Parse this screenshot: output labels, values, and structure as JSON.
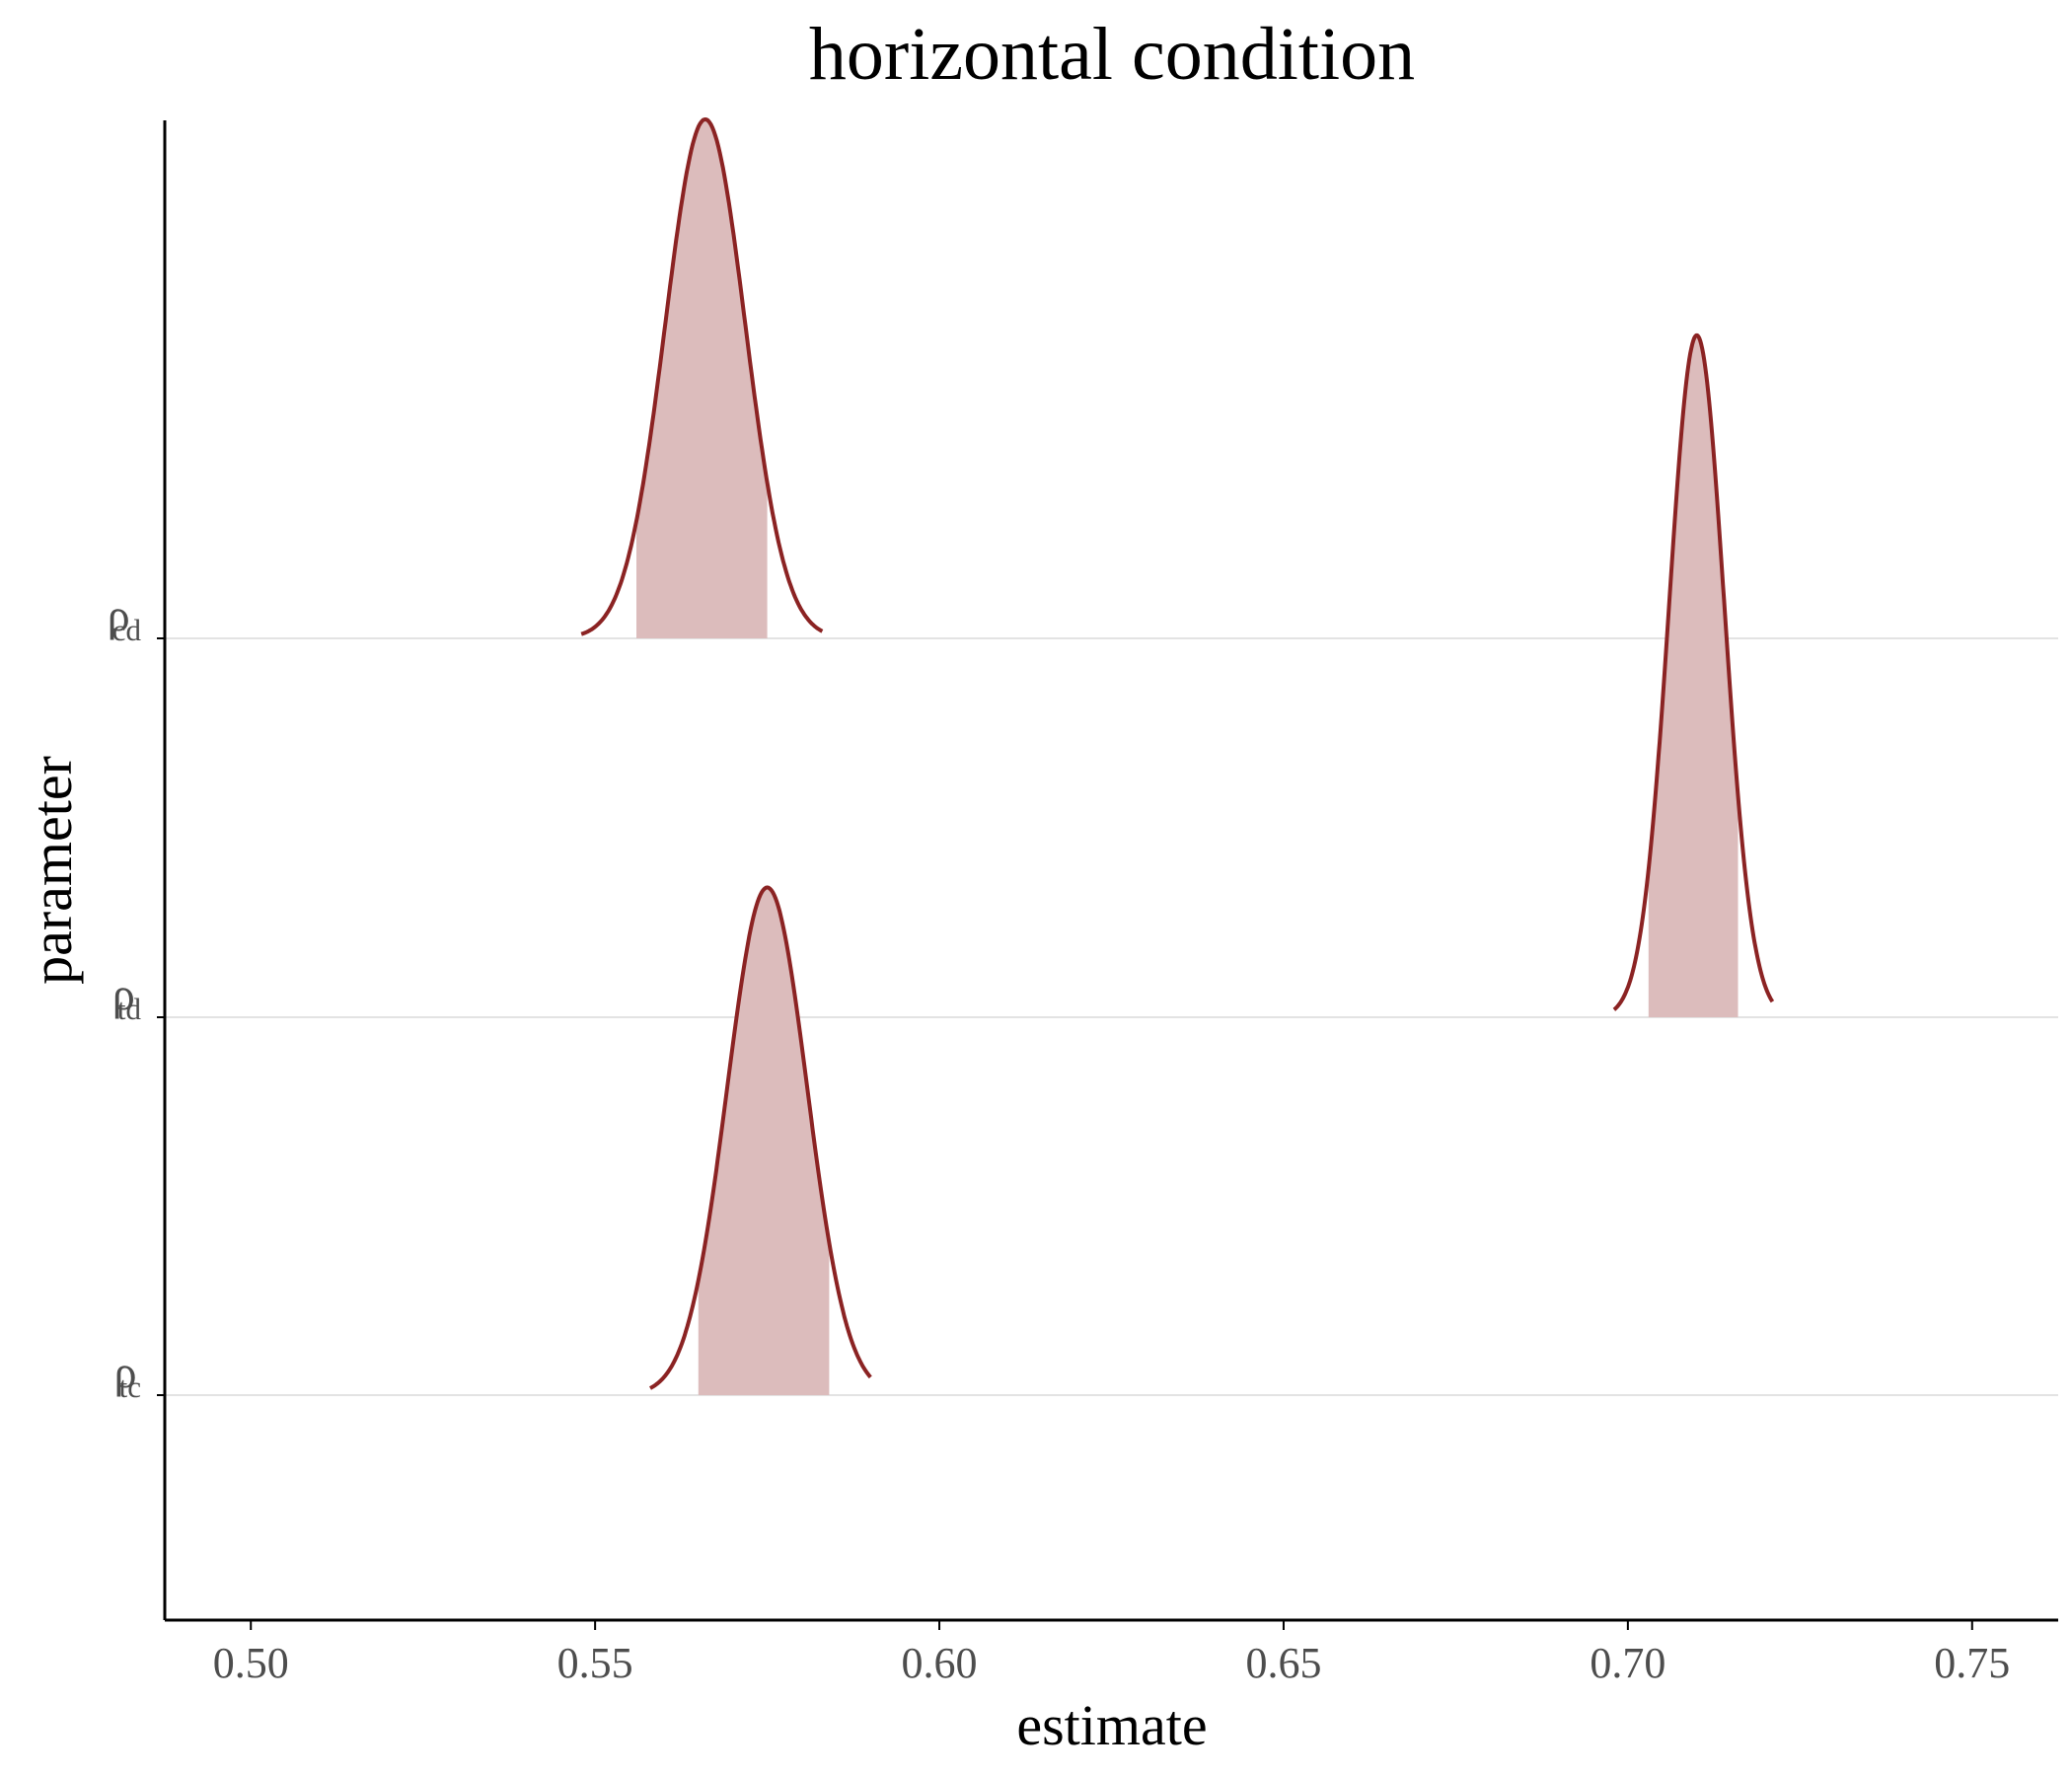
{
  "chart_data": {
    "type": "area",
    "title": "horizontal condition",
    "xlabel": "estimate",
    "ylabel": "parameter",
    "xlim": [
      0.4875,
      0.7625
    ],
    "xticks": [
      "0.50",
      "0.55",
      "0.60",
      "0.65",
      "0.70",
      "0.75"
    ],
    "xtick_values": [
      0.5,
      0.55,
      0.6,
      0.65,
      0.7,
      0.75
    ],
    "grid": "horizontal lines at categories",
    "colors": {
      "line": "#8b2323",
      "fill": "#dcbcbc",
      "grid": "#e3e3e3",
      "axis": "#000000"
    },
    "categories": [
      {
        "symbol": "ρ",
        "subscript": "cd"
      },
      {
        "symbol": "ρ",
        "subscript": "td"
      },
      {
        "symbol": "ρ",
        "subscript": "tc"
      }
    ],
    "series": [
      {
        "category_index": 0,
        "mean": 0.566,
        "sd": 0.0058,
        "x_range": [
          0.548,
          0.583
        ],
        "interval": [
          0.556,
          0.575
        ],
        "relative_height": 1.37
      },
      {
        "category_index": 1,
        "mean": 0.71,
        "sd": 0.004,
        "x_range": [
          0.698,
          0.721
        ],
        "interval": [
          0.703,
          0.716
        ],
        "relative_height": 1.8
      },
      {
        "category_index": 2,
        "mean": 0.575,
        "sd": 0.0058,
        "x_range": [
          0.558,
          0.59
        ],
        "interval": [
          0.565,
          0.584
        ],
        "relative_height": 1.34
      }
    ]
  }
}
